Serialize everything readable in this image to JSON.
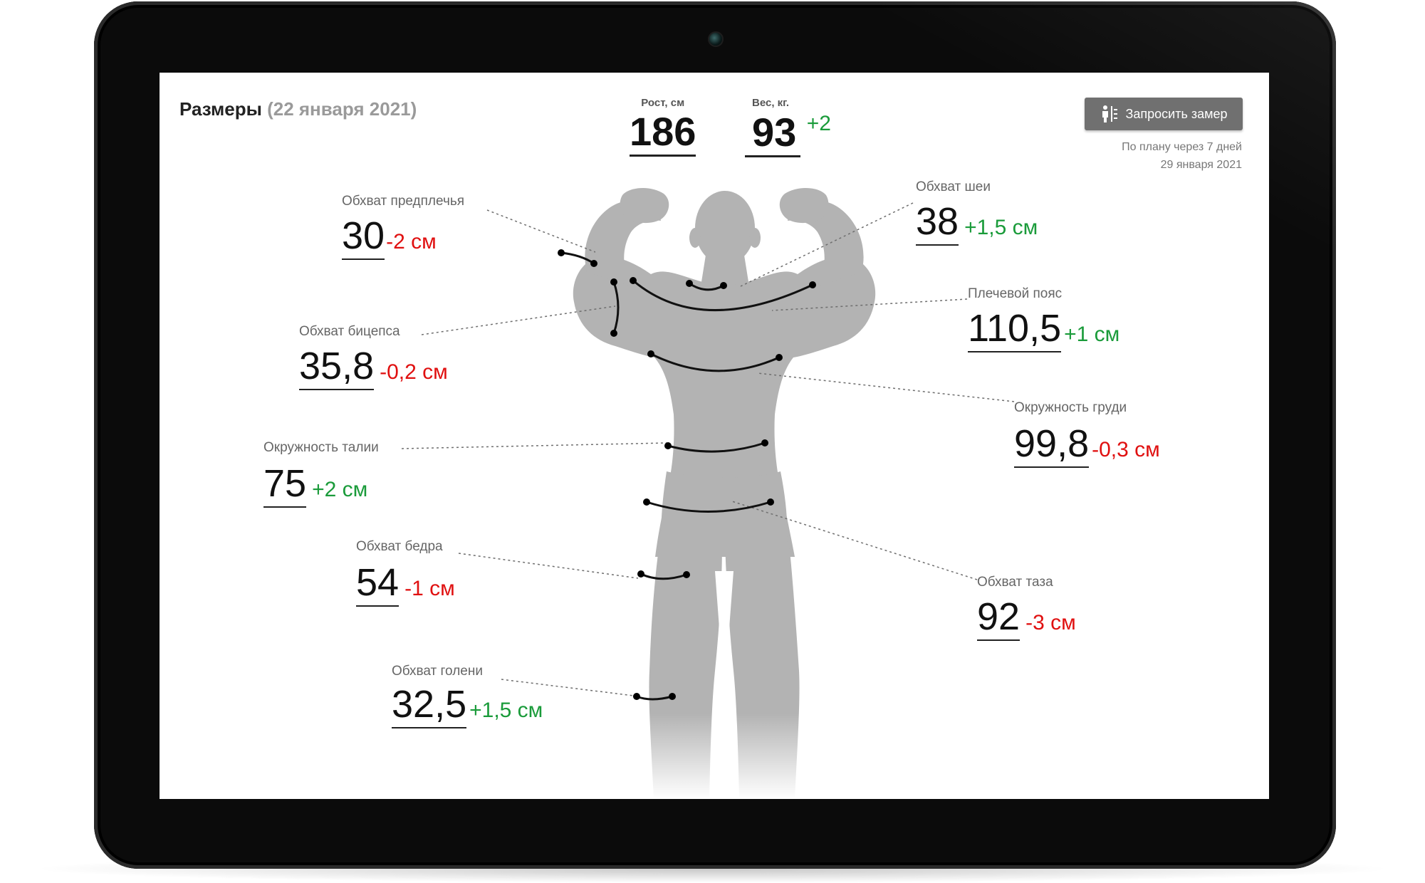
{
  "header": {
    "title": "Размеры",
    "date": "(22 января 2021)"
  },
  "stats": {
    "height": {
      "label": "Рост, см",
      "value": "186"
    },
    "weight": {
      "label": "Вес, кг.",
      "value": "93",
      "delta": "+2"
    }
  },
  "request": {
    "button_label": "Запросить замер",
    "icon": "people-icon",
    "plan_line1": "По плану через 7 дней",
    "plan_line2": "29 января 2021"
  },
  "measurements": {
    "forearm": {
      "label": "Обхват предплечья",
      "value": "30",
      "delta": "-2 см"
    },
    "biceps": {
      "label": "Обхват бицепса",
      "value": "35,8",
      "delta": "-0,2 см"
    },
    "waist": {
      "label": "Окружность талии",
      "value": "75",
      "delta": "+2 см"
    },
    "thigh": {
      "label": "Обхват бедра",
      "value": "54",
      "delta": "-1 см"
    },
    "calf": {
      "label": "Обхват голени",
      "value": "32,5",
      "delta": "+1,5 см"
    },
    "neck": {
      "label": "Обхват шеи",
      "value": "38",
      "delta": "+1,5 см"
    },
    "shoulders": {
      "label": "Плечевой пояс",
      "value": "110,5",
      "delta": "+1 см"
    },
    "chest": {
      "label": "Окружность груди",
      "value": "99,8",
      "delta": "-0,3 см"
    },
    "hips": {
      "label": "Обхват таза",
      "value": "92",
      "delta": "-3 см"
    }
  },
  "colors": {
    "positive": "#1a9b3a",
    "negative": "#e01010",
    "figure": "#b3b3b3",
    "button": "#707070"
  }
}
